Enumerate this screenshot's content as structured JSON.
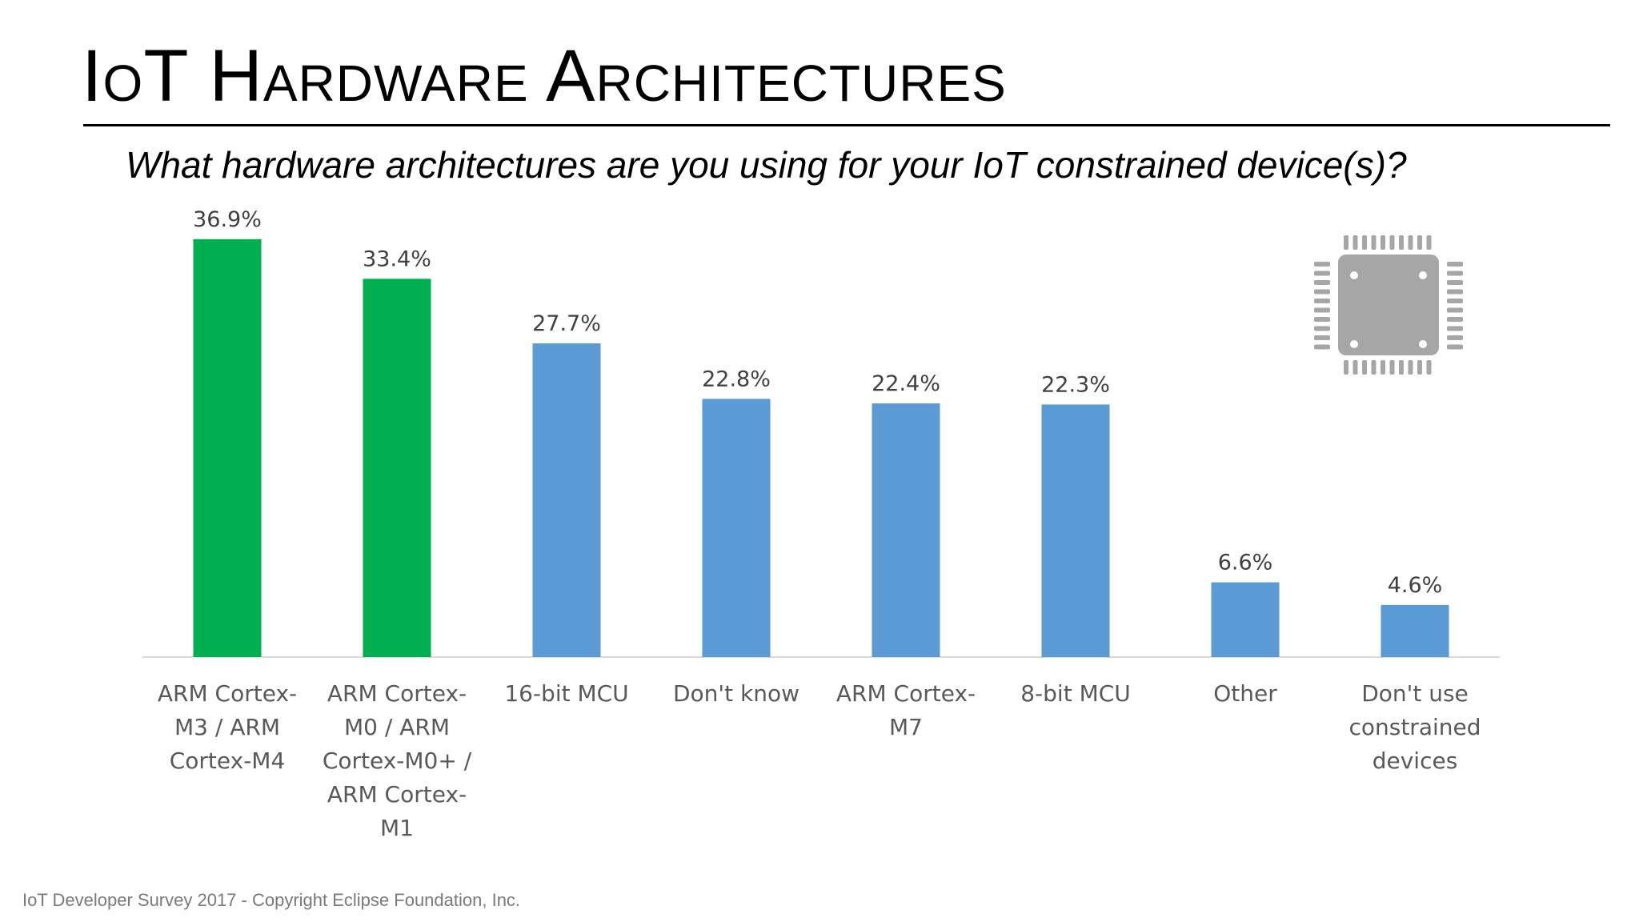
{
  "slide": {
    "title": "IoT Hardware Architectures",
    "subtitle": "What hardware architectures are you using for your IoT constrained device(s)?",
    "footer": "IoT Developer Survey 2017 - Copyright Eclipse Foundation, Inc."
  },
  "chart_data": {
    "type": "bar",
    "title": "",
    "xlabel": "",
    "ylabel": "",
    "ylim": [
      0,
      40
    ],
    "grid": false,
    "categories": [
      [
        "ARM Cortex-",
        "M3 / ARM",
        "Cortex-M4"
      ],
      [
        "ARM Cortex-",
        "M0 / ARM",
        "Cortex-M0+ /",
        "ARM Cortex-",
        "M1"
      ],
      [
        "16-bit MCU"
      ],
      [
        "Don't know"
      ],
      [
        "ARM Cortex-",
        "M7"
      ],
      [
        "8-bit MCU"
      ],
      [
        "Other"
      ],
      [
        "Don't use",
        "constrained",
        "devices"
      ]
    ],
    "values": [
      36.9,
      33.4,
      27.7,
      22.8,
      22.4,
      22.3,
      6.6,
      4.6
    ],
    "data_labels": [
      "36.9%",
      "33.4%",
      "27.7%",
      "22.8%",
      "22.4%",
      "22.3%",
      "6.6%",
      "4.6%"
    ],
    "bar_colors": [
      "#00b050",
      "#00b050",
      "#5b9bd5",
      "#5b9bd5",
      "#5b9bd5",
      "#5b9bd5",
      "#5b9bd5",
      "#5b9bd5"
    ]
  },
  "decoration": {
    "icon": "microchip-icon",
    "icon_color": "#a6a6a6"
  }
}
